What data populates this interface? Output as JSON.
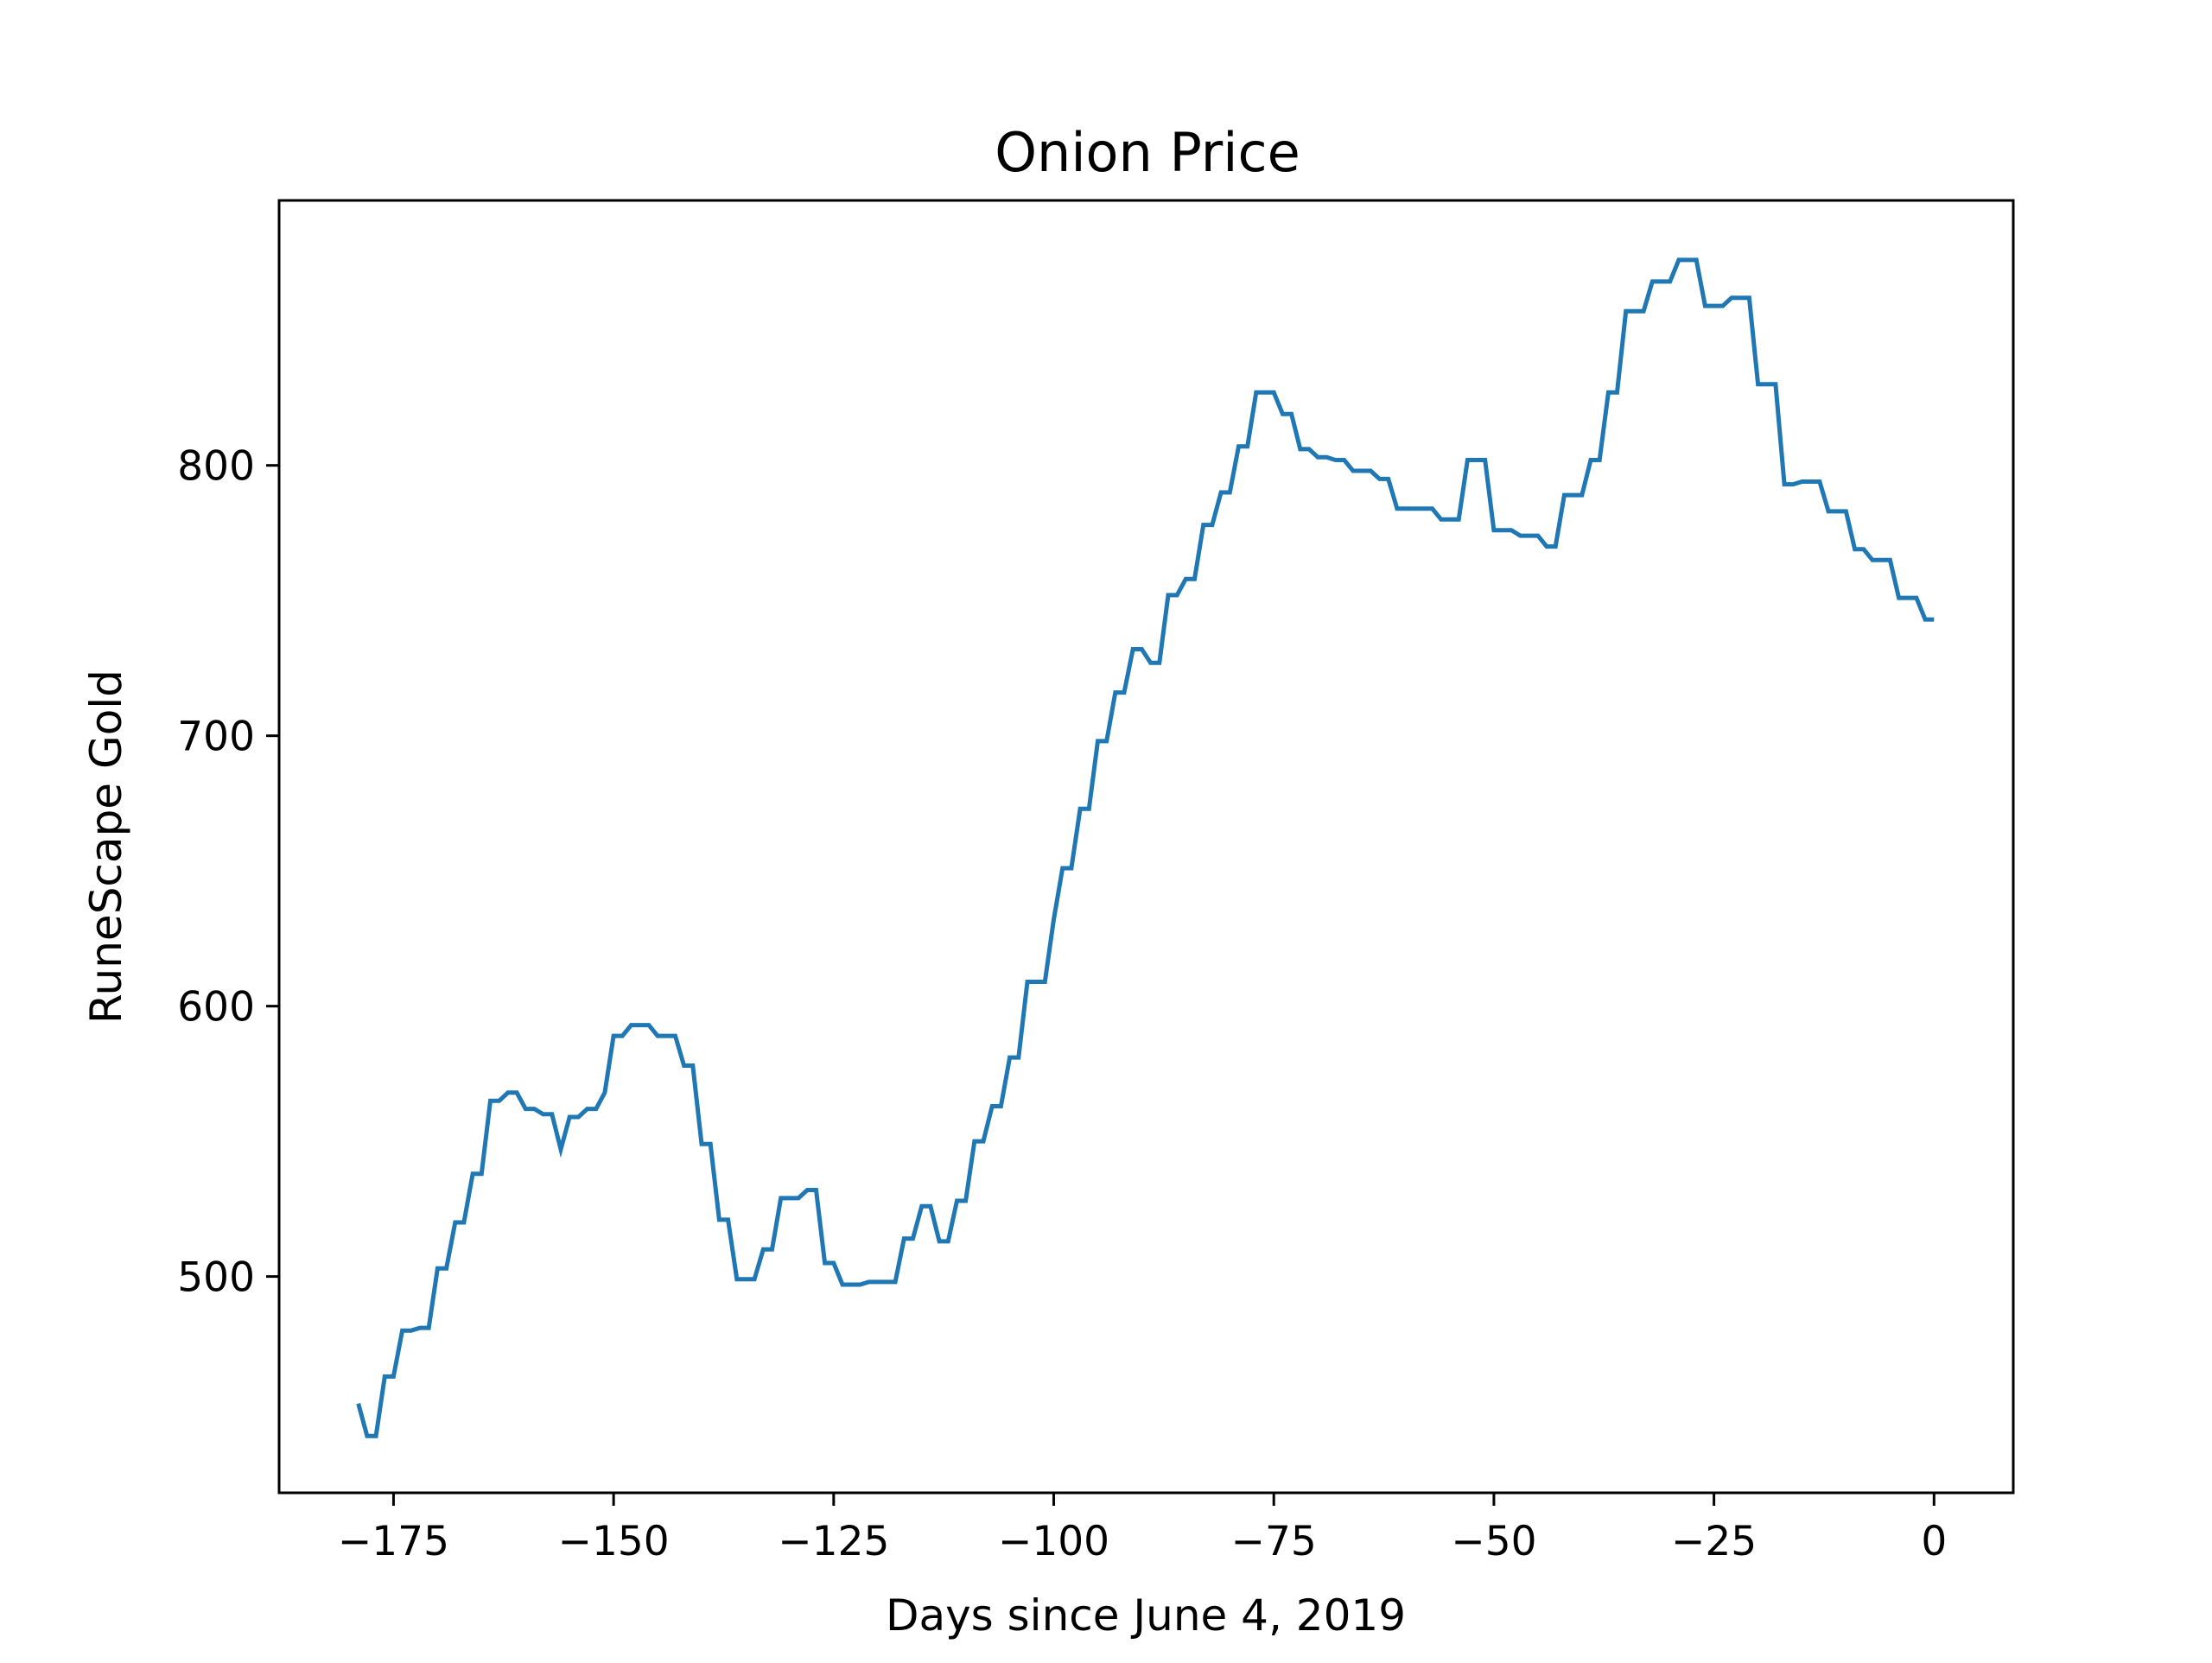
{
  "chart_data": {
    "type": "line",
    "title": "Onion Price",
    "xlabel": "Days since June 4, 2019",
    "ylabel": "RuneScape Gold",
    "xlim": [
      -188,
      9
    ],
    "ylim": [
      420,
      898
    ],
    "xticks": [
      -175,
      -150,
      -125,
      -100,
      -75,
      -50,
      -25,
      0
    ],
    "xtick_labels": [
      "−175",
      "−150",
      "−125",
      "−100",
      "−75",
      "−50",
      "−25",
      "0"
    ],
    "yticks": [
      500,
      600,
      700,
      800
    ],
    "ytick_labels": [
      "500",
      "600",
      "700",
      "800"
    ],
    "grid": false,
    "legend": "none",
    "series": [
      {
        "color": "#1f77b4",
        "x": [
          -179,
          -178,
          -177,
          -176,
          -175,
          -174,
          -173,
          -172,
          -171,
          -170,
          -169,
          -168,
          -167,
          -166,
          -165,
          -164,
          -163,
          -162,
          -161,
          -160,
          -159,
          -158,
          -157,
          -156,
          -155,
          -154,
          -153,
          -152,
          -151,
          -150,
          -149,
          -148,
          -147,
          -146,
          -145,
          -144,
          -143,
          -142,
          -141,
          -140,
          -139,
          -138,
          -137,
          -136,
          -135,
          -134,
          -133,
          -132,
          -131,
          -130,
          -129,
          -128,
          -127,
          -126,
          -125,
          -124,
          -123,
          -122,
          -121,
          -120,
          -119,
          -118,
          -117,
          -116,
          -115,
          -114,
          -113,
          -112,
          -111,
          -110,
          -109,
          -108,
          -107,
          -106,
          -105,
          -104,
          -103,
          -102,
          -101,
          -100,
          -99,
          -98,
          -97,
          -96,
          -95,
          -94,
          -93,
          -92,
          -91,
          -90,
          -89,
          -88,
          -87,
          -86,
          -85,
          -84,
          -83,
          -82,
          -81,
          -80,
          -79,
          -78,
          -77,
          -76,
          -75,
          -74,
          -73,
          -72,
          -71,
          -70,
          -69,
          -68,
          -67,
          -66,
          -65,
          -64,
          -63,
          -62,
          -61,
          -60,
          -59,
          -58,
          -57,
          -56,
          -55,
          -54,
          -53,
          -52,
          -51,
          -50,
          -49,
          -48,
          -47,
          -46,
          -45,
          -44,
          -43,
          -42,
          -41,
          -40,
          -39,
          -38,
          -37,
          -36,
          -35,
          -34,
          -33,
          -32,
          -31,
          -30,
          -29,
          -28,
          -27,
          -26,
          -25,
          -24,
          -23,
          -22,
          -21,
          -20,
          -19,
          -18,
          -17,
          -16,
          -15,
          -14,
          -13,
          -12,
          -11,
          -10,
          -9,
          -8,
          -7,
          -6,
          -5,
          -4,
          -3,
          -2,
          -1,
          0
        ],
        "y": [
          453,
          441,
          441,
          463,
          463,
          480,
          480,
          481,
          481,
          503,
          503,
          520,
          520,
          538,
          538,
          565,
          565,
          568,
          568,
          562,
          562,
          560,
          560,
          547,
          559,
          559,
          562,
          562,
          568,
          589,
          589,
          593,
          593,
          593,
          589,
          589,
          589,
          578,
          578,
          549,
          549,
          521,
          521,
          499,
          499,
          499,
          510,
          510,
          529,
          529,
          529,
          532,
          532,
          505,
          505,
          497,
          497,
          497,
          498,
          498,
          498,
          498,
          514,
          514,
          526,
          526,
          513,
          513,
          528,
          528,
          550,
          550,
          563,
          563,
          581,
          581,
          609,
          609,
          609,
          632,
          651,
          651,
          673,
          673,
          698,
          698,
          716,
          716,
          732,
          732,
          727,
          727,
          752,
          752,
          758,
          758,
          778,
          778,
          790,
          790,
          807,
          807,
          827,
          827,
          827,
          819,
          819,
          806,
          806,
          803,
          803,
          802,
          802,
          798,
          798,
          798,
          795,
          795,
          784,
          784,
          784,
          784,
          784,
          780,
          780,
          780,
          802,
          802,
          802,
          776,
          776,
          776,
          774,
          774,
          774,
          770,
          770,
          789,
          789,
          789,
          802,
          802,
          827,
          827,
          857,
          857,
          857,
          868,
          868,
          868,
          876,
          876,
          876,
          859,
          859,
          859,
          862,
          862,
          862,
          830,
          830,
          830,
          793,
          793,
          794,
          794,
          794,
          783,
          783,
          783,
          769,
          769,
          765,
          765,
          765,
          751,
          751,
          751,
          743,
          743
        ]
      }
    ]
  }
}
